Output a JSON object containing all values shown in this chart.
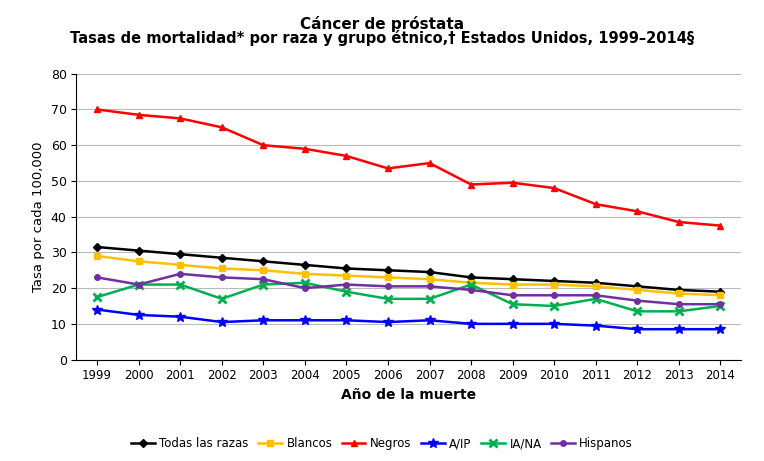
{
  "title_line1": "Cáncer de próstata",
  "title_line2": "Tasas de mortalidad* por raza y grupo étnico,† Estados Unidos, 1999–2014§",
  "xlabel": "Año de la muerte",
  "ylabel": "Tasa por cada 100,000",
  "years": [
    1999,
    2000,
    2001,
    2002,
    2003,
    2004,
    2005,
    2006,
    2007,
    2008,
    2009,
    2010,
    2011,
    2012,
    2013,
    2014
  ],
  "series": {
    "Todas las razas": {
      "values": [
        31.5,
        30.5,
        29.5,
        28.5,
        27.5,
        26.5,
        25.5,
        25.0,
        24.5,
        23.0,
        22.5,
        22.0,
        21.5,
        20.5,
        19.5,
        19.0
      ],
      "color": "#000000",
      "marker": "D",
      "markersize": 4
    },
    "Blancos": {
      "values": [
        29.0,
        27.5,
        26.5,
        25.5,
        25.0,
        24.0,
        23.5,
        23.0,
        22.5,
        21.5,
        21.0,
        21.0,
        20.5,
        19.5,
        18.5,
        18.0
      ],
      "color": "#FFC000",
      "marker": "s",
      "markersize": 4
    },
    "Negros": {
      "values": [
        70.0,
        68.5,
        67.5,
        65.0,
        60.0,
        59.0,
        57.0,
        53.5,
        55.0,
        49.0,
        49.5,
        48.0,
        43.5,
        41.5,
        38.5,
        37.5
      ],
      "color": "#FF0000",
      "marker": "^",
      "markersize": 5
    },
    "A/IP": {
      "values": [
        14.0,
        12.5,
        12.0,
        10.5,
        11.0,
        11.0,
        11.0,
        10.5,
        11.0,
        10.0,
        10.0,
        10.0,
        9.5,
        8.5,
        8.5,
        8.5
      ],
      "color": "#0000FF",
      "marker": "*",
      "markersize": 7
    },
    "IA/NA": {
      "values": [
        17.5,
        21.0,
        21.0,
        17.0,
        21.0,
        21.5,
        19.0,
        17.0,
        17.0,
        21.0,
        15.5,
        15.0,
        17.0,
        13.5,
        13.5,
        15.0
      ],
      "color": "#00B050",
      "marker": "x",
      "markersize": 6,
      "markeredgewidth": 2
    },
    "Hispanos": {
      "values": [
        23.0,
        21.0,
        24.0,
        23.0,
        22.5,
        20.0,
        21.0,
        20.5,
        20.5,
        19.5,
        18.0,
        18.0,
        18.0,
        16.5,
        15.5,
        15.5
      ],
      "color": "#7030A0",
      "marker": "o",
      "markersize": 4
    }
  },
  "ylim": [
    0,
    80
  ],
  "yticks": [
    0,
    10,
    20,
    30,
    40,
    50,
    60,
    70,
    80
  ],
  "background_color": "#FFFFFF",
  "grid_color": "#BBBBBB",
  "legend_order": [
    "Todas las razas",
    "Blancos",
    "Negros",
    "A/IP",
    "IA/NA",
    "Hispanos"
  ]
}
